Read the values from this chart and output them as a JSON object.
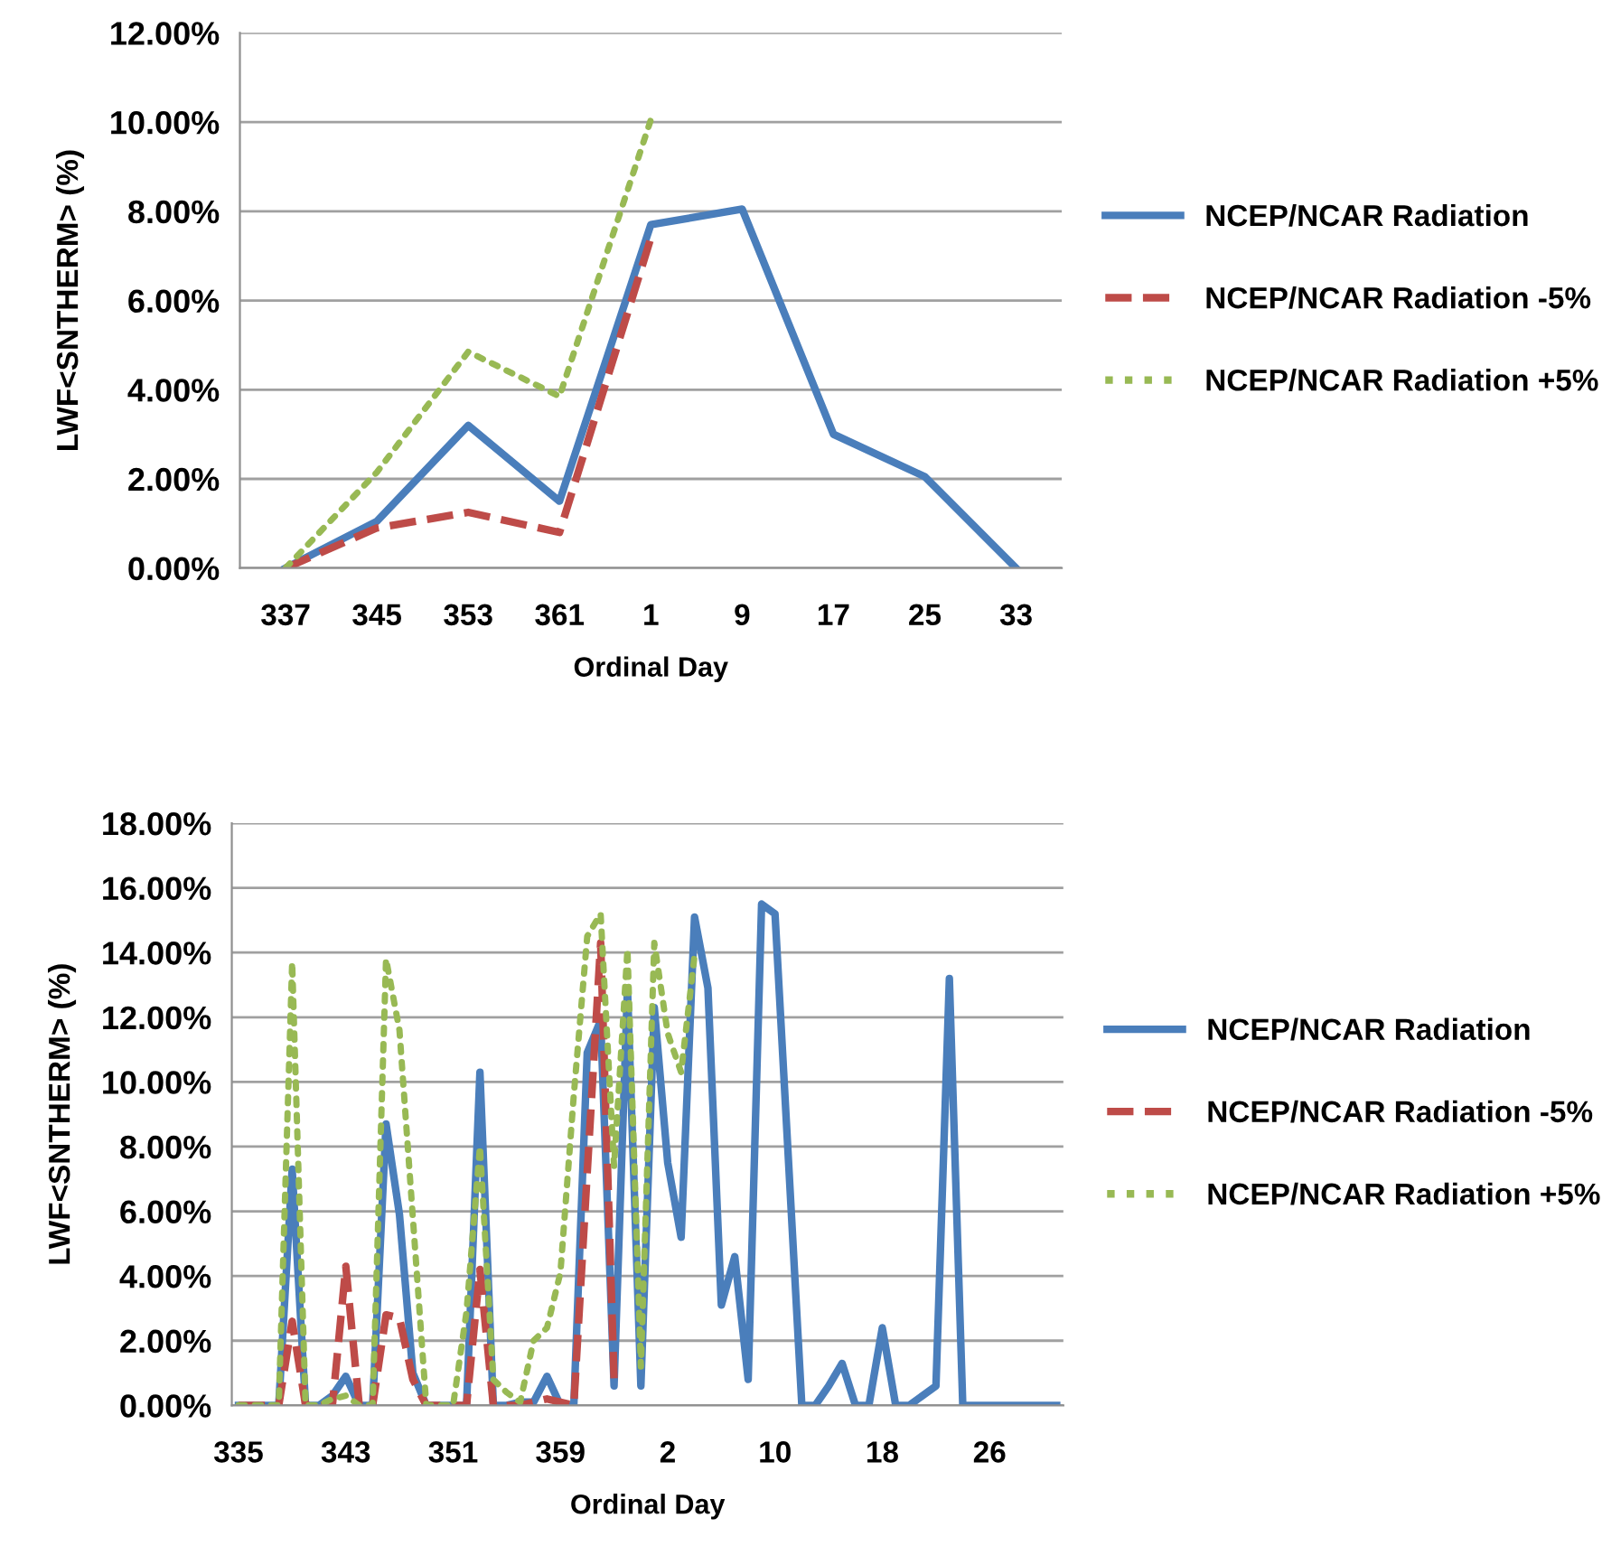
{
  "chart_data": [
    {
      "type": "line",
      "xlabel": "Ordinal Day",
      "ylabel": "LWF<SNTHERM> (%)",
      "grid": "y",
      "legend": "right",
      "categories": [
        "337",
        "345",
        "353",
        "361",
        "1",
        "9",
        "17",
        "25",
        "33"
      ],
      "ylim": [
        0,
        12
      ],
      "yticks": [
        {
          "value": 0,
          "label": "0.00%"
        },
        {
          "value": 2,
          "label": "2.00%"
        },
        {
          "value": 4,
          "label": "4.00%"
        },
        {
          "value": 6,
          "label": "6.00%"
        },
        {
          "value": 8,
          "label": "8.00%"
        },
        {
          "value": 10,
          "label": "10.00%"
        },
        {
          "value": 12,
          "label": "12.00%"
        }
      ],
      "series": [
        {
          "name": "NCEP/NCAR Radiation",
          "color": "#4a7ebb",
          "line_style": "solid",
          "values": [
            0,
            1.05,
            3.2,
            1.5,
            7.7,
            8.05,
            3.0,
            2.05,
            0
          ]
        },
        {
          "name": "NCEP/NCAR Radiation -5%",
          "color": "#be4b48",
          "line_style": "dashed",
          "values": [
            0,
            0.9,
            1.25,
            0.8,
            7.4,
            null,
            null,
            null,
            null
          ]
        },
        {
          "name": "NCEP/NCAR Radiation +5%",
          "color": "#98b954",
          "line_style": "dotted",
          "values": [
            0,
            2.15,
            4.85,
            3.85,
            10.05,
            null,
            null,
            null,
            null
          ]
        }
      ]
    },
    {
      "type": "line",
      "xlabel": "Ordinal Day",
      "ylabel": "LWF<SNTHERM> (%)",
      "grid": "y",
      "legend": "right",
      "categories": [
        "335",
        null,
        null,
        null,
        null,
        null,
        null,
        null,
        "343",
        null,
        null,
        null,
        null,
        null,
        null,
        null,
        "351",
        null,
        null,
        null,
        null,
        null,
        null,
        null,
        "359",
        null,
        null,
        null,
        null,
        null,
        null,
        null,
        "2",
        null,
        null,
        null,
        null,
        null,
        null,
        null,
        "10",
        null,
        null,
        null,
        null,
        null,
        null,
        null,
        "18",
        null,
        null,
        null,
        null,
        null,
        null,
        null,
        "26",
        null,
        null,
        null,
        null,
        null
      ],
      "ylim": [
        0,
        18
      ],
      "yticks": [
        {
          "value": 0,
          "label": "0.00%"
        },
        {
          "value": 2,
          "label": "2.00%"
        },
        {
          "value": 4,
          "label": "4.00%"
        },
        {
          "value": 6,
          "label": "6.00%"
        },
        {
          "value": 8,
          "label": "8.00%"
        },
        {
          "value": 10,
          "label": "10.00%"
        },
        {
          "value": 12,
          "label": "12.00%"
        },
        {
          "value": 14,
          "label": "14.00%"
        },
        {
          "value": 16,
          "label": "16.00%"
        },
        {
          "value": 18,
          "label": "18.00%"
        }
      ],
      "series": [
        {
          "name": "NCEP/NCAR Radiation",
          "color": "#4a7ebb",
          "line_style": "solid",
          "values": [
            0,
            0,
            0,
            0,
            7.3,
            0,
            0,
            0.3,
            0.9,
            0,
            0,
            8.7,
            5.9,
            1.0,
            0,
            0,
            0,
            0,
            10.3,
            0,
            0,
            0.1,
            0.1,
            0.9,
            0,
            0,
            10.9,
            11.9,
            0.6,
            12.9,
            0.6,
            12.3,
            7.5,
            5.2,
            15.1,
            12.9,
            3.1,
            4.6,
            0.8,
            15.5,
            15.2,
            7.6,
            0,
            0,
            0.6,
            1.3,
            0,
            0,
            2.4,
            0,
            0,
            0.3,
            0.6,
            13.2,
            0,
            0,
            0,
            0,
            0,
            0,
            0,
            0
          ]
        },
        {
          "name": "NCEP/NCAR Radiation -5%",
          "color": "#be4b48",
          "line_style": "dashed",
          "values": [
            0,
            0,
            0,
            0,
            2.6,
            0,
            0,
            0,
            4.3,
            0,
            0,
            2.8,
            2.7,
            0.8,
            0,
            0,
            0,
            0,
            4.2,
            0,
            0,
            0,
            0.1,
            0.2,
            0.1,
            0,
            7.2,
            14.3,
            0.8,
            null,
            null,
            null,
            null,
            null,
            null,
            null,
            null,
            null,
            null,
            null,
            null,
            null,
            null,
            null,
            null,
            null,
            null,
            null,
            null,
            null,
            null,
            null,
            null,
            null,
            null,
            null,
            null,
            null,
            null,
            null,
            null,
            null
          ]
        },
        {
          "name": "NCEP/NCAR Radiation +5%",
          "color": "#98b954",
          "line_style": "dotted",
          "values": [
            0,
            0,
            0,
            0,
            13.7,
            0,
            0,
            0.2,
            0.3,
            0,
            0,
            13.8,
            11.6,
            5.8,
            0,
            0,
            0,
            2.9,
            8.0,
            0.8,
            0.4,
            0.1,
            2.0,
            2.4,
            4.1,
            9.6,
            14.5,
            15.2,
            7.4,
            14.1,
            1.2,
            14.3,
            11.5,
            10.3,
            13.9,
            null,
            null,
            null,
            null,
            null,
            null,
            null,
            null,
            null,
            null,
            null,
            null,
            null,
            null,
            null,
            null,
            null,
            null,
            null,
            null,
            null,
            null,
            null,
            null,
            null,
            null,
            null
          ]
        }
      ]
    }
  ]
}
